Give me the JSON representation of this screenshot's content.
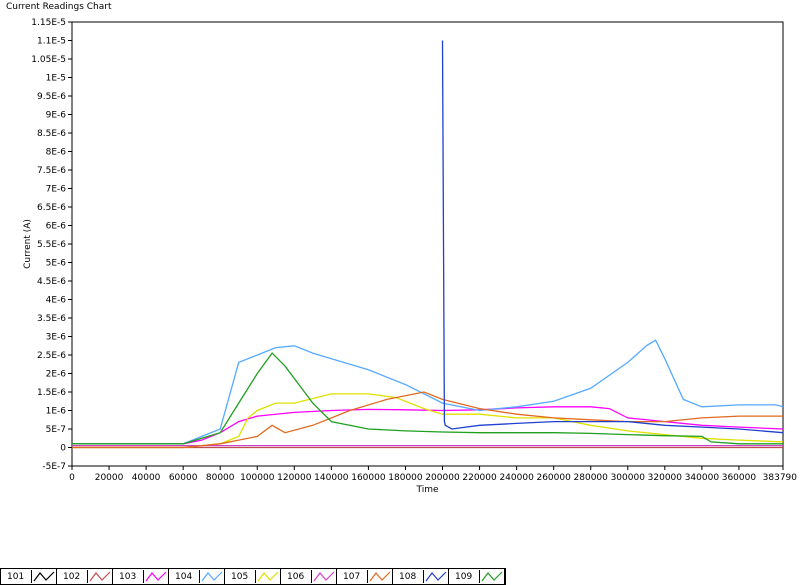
{
  "window": {
    "title": "Current Readings Chart"
  },
  "chart_data": {
    "type": "line",
    "title": "",
    "xlabel": "Time",
    "ylabel": "Current (A)",
    "xlim": [
      0,
      383790
    ],
    "ylim": [
      -5e-07,
      1.15e-05
    ],
    "x_ticks": [
      0,
      20000,
      40000,
      60000,
      80000,
      100000,
      120000,
      140000,
      160000,
      180000,
      200000,
      220000,
      240000,
      260000,
      280000,
      300000,
      320000,
      340000,
      360000,
      383790
    ],
    "x_tick_labels": [
      "0",
      "20000",
      "40000",
      "60000",
      "80000",
      "100000",
      "120000",
      "140000",
      "160000",
      "180000",
      "200000",
      "220000",
      "240000",
      "260000",
      "280000",
      "300000",
      "320000",
      "340000",
      "360000",
      "383790"
    ],
    "y_ticks": [
      -5e-07,
      0,
      5e-07,
      1e-06,
      1.5e-06,
      2e-06,
      2.5e-06,
      3e-06,
      3.5e-06,
      4e-06,
      4.5e-06,
      5e-06,
      5.5e-06,
      6e-06,
      6.5e-06,
      7e-06,
      7.5e-06,
      8e-06,
      8.5e-06,
      9e-06,
      9.5e-06,
      1e-05,
      1.05e-05,
      1.1e-05,
      1.15e-05
    ],
    "y_tick_labels": [
      "-5E-7",
      "0",
      "5E-7",
      "1E-6",
      "1.5E-6",
      "2E-6",
      "2.5E-6",
      "3E-6",
      "3.5E-6",
      "4E-6",
      "4.5E-6",
      "5E-6",
      "5.5E-6",
      "6E-6",
      "6.5E-6",
      "7E-6",
      "7.5E-6",
      "8E-6",
      "8.5E-6",
      "9E-6",
      "9.5E-6",
      "1E-5",
      "1.05E-5",
      "1.1E-5",
      "1.15E-5"
    ],
    "grid": false,
    "legend": "bottom",
    "series": [
      {
        "name": "101",
        "color": "#000000",
        "x": [],
        "y": []
      },
      {
        "name": "102",
        "color": "#c0504d",
        "x": [
          0,
          383790
        ],
        "y": [
          0,
          0
        ]
      },
      {
        "name": "103",
        "color": "#ff00ff",
        "x": [
          0,
          10000,
          40000,
          60000,
          70000,
          80000,
          90000,
          100000,
          120000,
          140000,
          160000,
          180000,
          200000,
          220000,
          240000,
          260000,
          280000,
          290000,
          300000,
          320000,
          340000,
          360000,
          383790
        ],
        "y": [
          1e-07,
          1e-07,
          1e-07,
          1e-07,
          2e-07,
          4e-07,
          7e-07,
          8.5e-07,
          9.5e-07,
          1e-06,
          1.03e-06,
          1.02e-06,
          1e-06,
          1.02e-06,
          1.07e-06,
          1.1e-06,
          1.1e-06,
          1.05e-06,
          8e-07,
          7e-07,
          6e-07,
          5.5e-07,
          5e-07
        ]
      },
      {
        "name": "104",
        "color": "#55aaff",
        "x": [
          0,
          20000,
          40000,
          60000,
          80000,
          90000,
          100000,
          110000,
          120000,
          130000,
          140000,
          160000,
          180000,
          200000,
          220000,
          240000,
          260000,
          280000,
          300000,
          310000,
          315000,
          320000,
          330000,
          340000,
          360000,
          380000,
          383790
        ],
        "y": [
          1e-07,
          1e-07,
          1e-07,
          1e-07,
          5e-07,
          2.3e-06,
          2.5e-06,
          2.7e-06,
          2.75e-06,
          2.55e-06,
          2.4e-06,
          2.1e-06,
          1.7e-06,
          1.2e-06,
          1e-06,
          1.1e-06,
          1.25e-06,
          1.6e-06,
          2.3e-06,
          2.75e-06,
          2.9e-06,
          2.4e-06,
          1.3e-06,
          1.1e-06,
          1.15e-06,
          1.15e-06,
          1.1e-06
        ]
      },
      {
        "name": "105",
        "color": "#e0e000",
        "x": [
          0,
          60000,
          80000,
          90000,
          95000,
          100000,
          110000,
          120000,
          140000,
          160000,
          175000,
          190000,
          200000,
          220000,
          240000,
          260000,
          280000,
          300000,
          320000,
          340000,
          360000,
          383790
        ],
        "y": [
          0,
          0,
          1e-07,
          3e-07,
          8e-07,
          1e-06,
          1.2e-06,
          1.2e-06,
          1.45e-06,
          1.45e-06,
          1.35e-06,
          1.05e-06,
          9e-07,
          9e-07,
          8e-07,
          8e-07,
          6e-07,
          4.5e-07,
          3.5e-07,
          2.5e-07,
          2e-07,
          1.5e-07
        ]
      },
      {
        "name": "106",
        "color": "#cc44cc",
        "x": [
          0,
          383790
        ],
        "y": [
          5e-08,
          5e-08
        ]
      },
      {
        "name": "107",
        "color": "#e06a20",
        "x": [
          0,
          60000,
          80000,
          90000,
          100000,
          108000,
          115000,
          130000,
          150000,
          170000,
          190000,
          200000,
          220000,
          240000,
          260000,
          280000,
          300000,
          320000,
          340000,
          360000,
          383790
        ],
        "y": [
          0,
          0,
          1e-07,
          2e-07,
          3e-07,
          6e-07,
          4e-07,
          6e-07,
          1e-06,
          1.3e-06,
          1.5e-06,
          1.3e-06,
          1.05e-06,
          9e-07,
          8e-07,
          7.5e-07,
          7e-07,
          7e-07,
          8e-07,
          8.5e-07,
          8.5e-07
        ]
      },
      {
        "name": "108",
        "color": "#2040d0",
        "x": [
          200000,
          201000,
          201500,
          205000,
          220000,
          240000,
          260000,
          280000,
          300000,
          320000,
          340000,
          360000,
          383790
        ],
        "y": [
          1.1e-05,
          7e-07,
          6e-07,
          5e-07,
          6e-07,
          6.5e-07,
          7e-07,
          7e-07,
          7e-07,
          6e-07,
          5.5e-07,
          5e-07,
          4e-07
        ]
      },
      {
        "name": "109",
        "color": "#20a020",
        "x": [
          0,
          60000,
          80000,
          90000,
          100000,
          108000,
          115000,
          130000,
          140000,
          160000,
          180000,
          200000,
          220000,
          240000,
          260000,
          280000,
          300000,
          320000,
          340000,
          345000,
          360000,
          383790
        ],
        "y": [
          1e-07,
          1e-07,
          4e-07,
          1.2e-06,
          2e-06,
          2.55e-06,
          2.2e-06,
          1.2e-06,
          7e-07,
          5e-07,
          4.5e-07,
          4.2e-07,
          4e-07,
          4e-07,
          4e-07,
          3.8e-07,
          3.5e-07,
          3.2e-07,
          3e-07,
          1.5e-07,
          1e-07,
          1e-07
        ]
      }
    ]
  }
}
